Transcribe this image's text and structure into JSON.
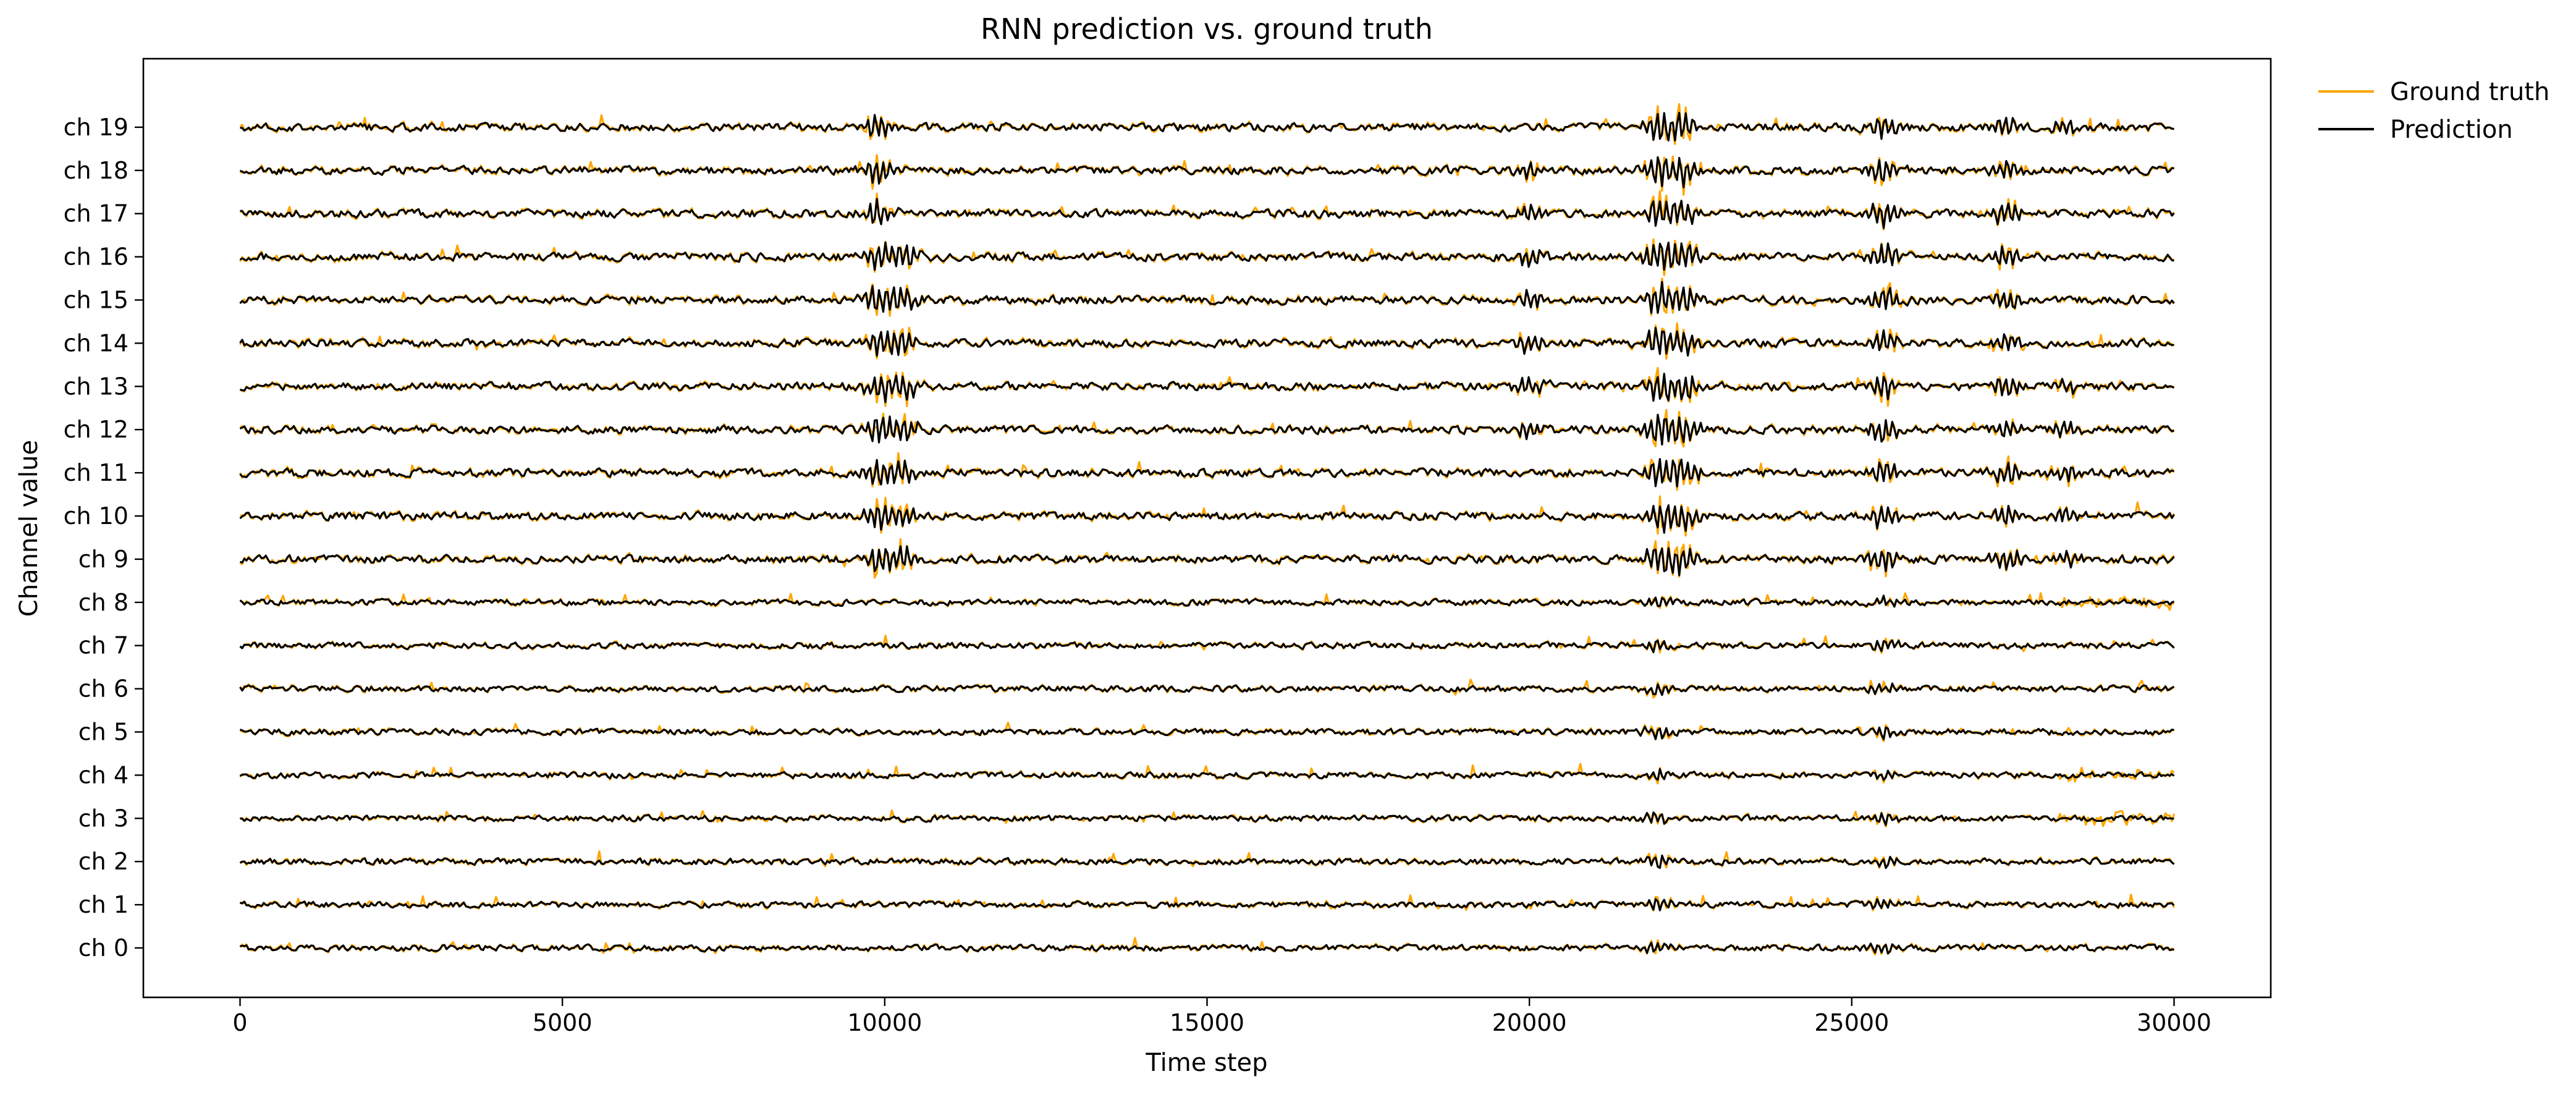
{
  "chart_data": {
    "type": "line",
    "title": "RNN prediction vs. ground truth",
    "xlabel": "Time step",
    "ylabel": "Channel value",
    "xlim": [
      -1500,
      31500
    ],
    "x_ticks": [
      0,
      5000,
      10000,
      15000,
      20000,
      25000,
      30000
    ],
    "x_tick_labels": [
      "0",
      "5000",
      "10000",
      "15000",
      "20000",
      "25000",
      "30000"
    ],
    "x_range": [
      0,
      30000
    ],
    "channel_labels": [
      "ch 0",
      "ch 1",
      "ch 2",
      "ch 3",
      "ch 4",
      "ch 5",
      "ch 6",
      "ch 7",
      "ch 8",
      "ch 9",
      "ch 10",
      "ch 11",
      "ch 12",
      "ch 13",
      "ch 14",
      "ch 15",
      "ch 16",
      "ch 17",
      "ch 18",
      "ch 19"
    ],
    "legend_position": "outside-top-right",
    "grid": false,
    "series": [
      {
        "name": "Ground truth",
        "color": "#FFA500"
      },
      {
        "name": "Prediction",
        "color": "#000000"
      }
    ],
    "events": [
      {
        "x": 9900,
        "channels": [
          9,
          10,
          11,
          12,
          13,
          14,
          15,
          16,
          17,
          18,
          19
        ],
        "strength": 0.9
      },
      {
        "x": 10300,
        "channels": [
          9,
          10,
          11,
          12,
          13,
          14,
          15,
          16
        ],
        "strength": 0.8
      },
      {
        "x": 20000,
        "channels": [
          12,
          13,
          14,
          15,
          16,
          17,
          18
        ],
        "strength": 0.6
      },
      {
        "x": 22000,
        "channels": [
          0,
          1,
          2,
          3,
          4,
          5,
          6,
          7,
          8,
          9,
          10,
          11,
          12,
          13,
          14,
          15,
          16,
          17,
          18,
          19
        ],
        "strength": 1.0
      },
      {
        "x": 22400,
        "channels": [
          9,
          10,
          11,
          12,
          13,
          14,
          15,
          16,
          17,
          18,
          19
        ],
        "strength": 0.9
      },
      {
        "x": 25500,
        "channels": [
          0,
          1,
          2,
          3,
          4,
          5,
          6,
          7,
          8,
          9,
          10,
          11,
          12,
          13,
          14,
          15,
          16,
          17,
          18,
          19
        ],
        "strength": 0.8
      },
      {
        "x": 27400,
        "channels": [
          9,
          10,
          11,
          12,
          13,
          14,
          15,
          16,
          17,
          18,
          19
        ],
        "strength": 0.7
      },
      {
        "x": 28300,
        "channels": [
          9,
          10,
          11,
          12,
          13,
          19
        ],
        "strength": 0.5
      }
    ],
    "noisy_tail": {
      "x_start": 28200,
      "channels": [
        3,
        4,
        8
      ]
    }
  }
}
